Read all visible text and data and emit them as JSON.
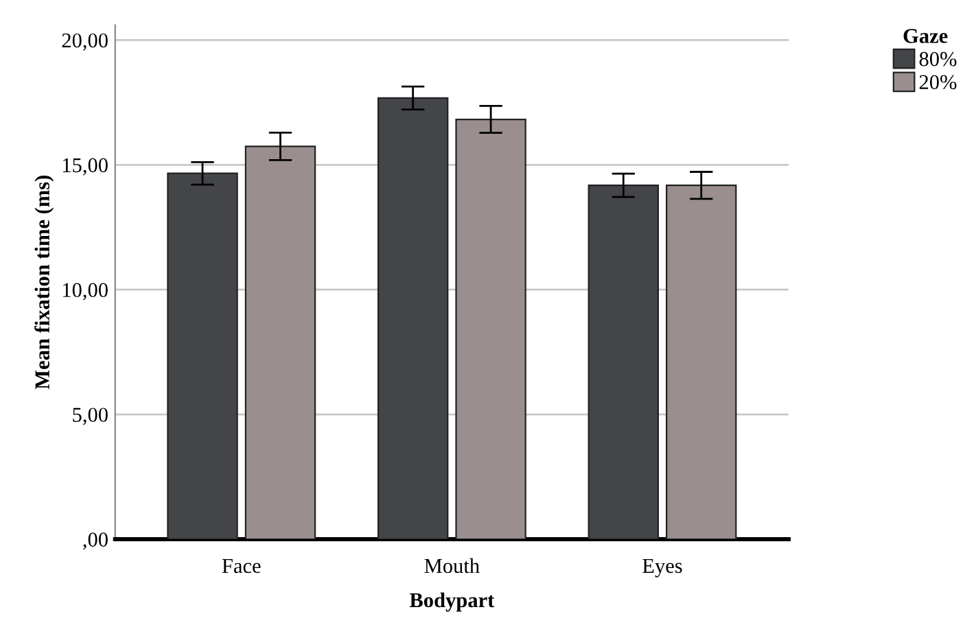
{
  "chart_data": {
    "type": "bar",
    "xlabel": "Bodypart",
    "ylabel": "Mean fixation time (ms)",
    "legend_title": "Gaze",
    "categories": [
      "Face",
      "Mouth",
      "Eyes"
    ],
    "series": [
      {
        "name": "80%",
        "color": "#434548",
        "values": [
          14.66,
          17.68,
          14.18
        ],
        "errors": [
          0.45,
          0.46,
          0.47
        ]
      },
      {
        "name": "20%",
        "color": "#9a8f8e",
        "values": [
          15.74,
          16.82,
          14.18
        ],
        "errors": [
          0.55,
          0.54,
          0.54
        ]
      }
    ],
    "ylim": [
      0,
      20.6
    ],
    "yticks": [
      {
        "value": 0,
        "label": ",00"
      },
      {
        "value": 5,
        "label": "5,00"
      },
      {
        "value": 10,
        "label": "10,00"
      },
      {
        "value": 15,
        "label": "15,00"
      },
      {
        "value": 20,
        "label": "20,00"
      }
    ],
    "grid": "y",
    "legend": "top right"
  }
}
